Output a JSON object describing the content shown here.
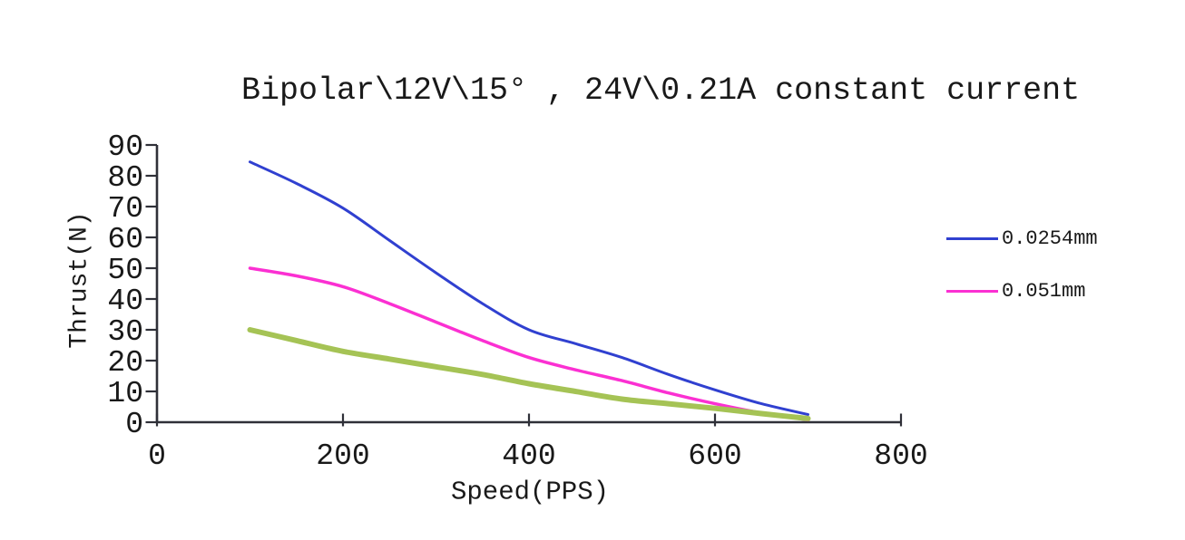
{
  "chart_data": {
    "type": "line",
    "title": "Bipolar\\12V\\15° , 24V\\0.21A constant current",
    "xlabel": "Speed(PPS)",
    "ylabel": "Thrust(N)",
    "xlim": [
      0,
      800
    ],
    "ylim": [
      0,
      90
    ],
    "x_ticks": [
      0,
      200,
      400,
      600,
      800
    ],
    "y_ticks": [
      0,
      10,
      20,
      30,
      40,
      50,
      60,
      70,
      80,
      90
    ],
    "grid": false,
    "legend_position": "right-outside",
    "axis_color": "#2f3038",
    "text_color": "#191919",
    "x": [
      100,
      150,
      200,
      250,
      300,
      350,
      400,
      450,
      500,
      550,
      600,
      650,
      700
    ],
    "series": [
      {
        "name": "0.0254mm",
        "color": "#3040d0",
        "width": 3,
        "values": [
          84.5,
          77.5,
          69.5,
          59,
          48.5,
          38.5,
          30,
          25.5,
          21,
          15.5,
          10.5,
          6,
          2.5
        ]
      },
      {
        "name": "0.051mm",
        "color": "#fb30d2",
        "width": 3.5,
        "values": [
          50,
          47.5,
          44,
          38.5,
          32.5,
          26.5,
          21,
          17,
          13.5,
          9.5,
          6,
          3,
          0.8
        ]
      },
      {
        "name": "",
        "color": "#a5c355",
        "width": 6,
        "values": [
          30,
          26.5,
          23,
          20.5,
          18,
          15.5,
          12.5,
          10,
          7.5,
          6,
          4.5,
          2.8,
          1.2
        ]
      }
    ],
    "legend": [
      {
        "label": "0.0254mm",
        "color": "#3040d0"
      },
      {
        "label": "0.051mm",
        "color": "#fb30d2"
      }
    ]
  }
}
